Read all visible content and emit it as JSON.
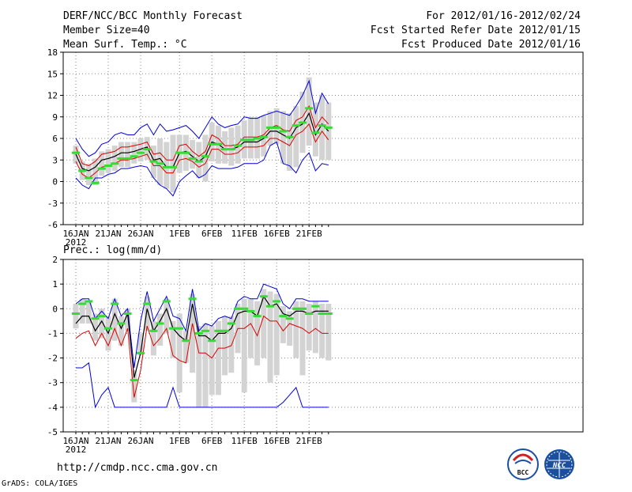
{
  "header": {
    "line1_left": "DERF/NCC/BCC Monthly Forecast",
    "line2_left": "Member Size=40",
    "line3_left": "Mean Surf. Temp.: °C",
    "line1_right": "For 2012/01/16-2012/02/24",
    "line2_right": "Fcst Started Refer Date 2012/01/15",
    "line3_right": "Fcst Produced Date 2012/01/16"
  },
  "footer": {
    "url": "http://cmdp.ncc.cma.gov.cn",
    "grads": "GrADS: COLA/IGES",
    "logo1_text": "BCC",
    "logo2_text": "NCC"
  },
  "colors": {
    "spread": "#d3d3d3",
    "envelope": "#0000dd",
    "inner": "#dd0000",
    "mean": "#000000",
    "median": "#33dd33",
    "grid": "#888888"
  },
  "chart_data": [
    {
      "type": "line",
      "title": "Mean Surf. Temp.: °C",
      "x_days": 40,
      "x_tick_labels": [
        {
          "day": 0,
          "label": "16JAN"
        },
        {
          "day": 5,
          "label": "21JAN"
        },
        {
          "day": 10,
          "label": "26JAN"
        },
        {
          "day": 16,
          "label": "1FEB"
        },
        {
          "day": 21,
          "label": "6FEB"
        },
        {
          "day": 26,
          "label": "11FEB"
        },
        {
          "day": 31,
          "label": "16FEB"
        },
        {
          "day": 36,
          "label": "21FEB"
        }
      ],
      "year_label": "2012",
      "ylim": [
        -6,
        18
      ],
      "yticks": [
        -6,
        -3,
        0,
        3,
        6,
        9,
        12,
        15,
        18
      ],
      "series": [
        {
          "name": "max",
          "values": [
            6,
            4.5,
            3.5,
            4,
            5.2,
            5.5,
            6.5,
            6.8,
            6.5,
            6.5,
            7.5,
            8,
            6.5,
            8,
            7,
            7.2,
            7.5,
            7.8,
            7,
            6,
            7.5,
            9,
            8,
            7.5,
            7.8,
            8,
            9,
            8.8,
            8.8,
            9.2,
            9.5,
            9.8,
            9.5,
            9.2,
            10.5,
            12,
            14,
            9.5,
            12.3,
            10.8
          ]
        },
        {
          "name": "upper",
          "values": [
            4.8,
            2.5,
            2.2,
            2.8,
            3.8,
            4,
            4.2,
            4.8,
            4.8,
            5,
            5.2,
            5.5,
            3.8,
            4,
            3,
            3,
            5,
            5.2,
            4.2,
            3.5,
            4.2,
            6.5,
            6,
            5,
            5,
            5.2,
            6.2,
            6.2,
            6.2,
            6.5,
            7.5,
            7.8,
            7.2,
            7,
            8.5,
            9,
            10.5,
            7.5,
            9,
            8
          ]
        },
        {
          "name": "mean",
          "values": [
            3.8,
            1.8,
            1.5,
            2,
            3,
            3.2,
            3.5,
            4,
            4,
            4.2,
            4.5,
            4.8,
            3,
            3.2,
            2,
            2,
            4,
            4.2,
            3.5,
            2.8,
            3.5,
            5.5,
            5.2,
            4.5,
            4.5,
            4.8,
            5.5,
            5.5,
            5.5,
            6,
            7,
            7,
            6.5,
            6,
            7.5,
            8,
            9.5,
            6.5,
            8,
            7
          ]
        },
        {
          "name": "lower",
          "values": [
            2.8,
            1,
            0.5,
            1.2,
            2,
            2.2,
            2.5,
            3,
            3,
            3.2,
            3.5,
            3.8,
            2.2,
            2.2,
            1.2,
            1.2,
            3,
            3.2,
            2.8,
            2,
            2.5,
            4.5,
            4.5,
            3.8,
            3.8,
            4,
            4.8,
            4.8,
            4.8,
            5,
            6,
            6,
            5.5,
            5,
            6.5,
            7,
            8,
            5.5,
            7,
            5.8
          ]
        },
        {
          "name": "min",
          "values": [
            0.5,
            -0.5,
            -1,
            0.5,
            0.5,
            1,
            1.2,
            1.8,
            1.8,
            2,
            2.2,
            2,
            0.5,
            -0.5,
            -1,
            -2,
            0,
            0.8,
            1.5,
            0.5,
            1,
            2.2,
            1.8,
            1.8,
            1.8,
            2,
            2.5,
            2.5,
            2.5,
            3,
            5,
            5.5,
            2.5,
            2.2,
            1.2,
            3,
            4,
            1.5,
            2.5,
            2.3
          ]
        },
        {
          "name": "median",
          "values": [
            4,
            1.5,
            0.5,
            -0.2,
            1.8,
            2.2,
            2.5,
            3.2,
            3.2,
            3.5,
            4,
            4.5,
            2.8,
            2.5,
            2,
            2,
            4,
            4,
            3.2,
            2.8,
            3.5,
            5.2,
            5.2,
            4.5,
            4.5,
            5,
            5.8,
            5.8,
            6,
            6.2,
            7.5,
            7.5,
            7,
            6.2,
            7.8,
            8.2,
            10.2,
            6.8,
            7.8,
            7.5
          ]
        },
        {
          "name": "spread_high",
          "values": [
            5,
            2.8,
            2.5,
            3.2,
            4.2,
            4.5,
            5,
            5.5,
            5.5,
            5.5,
            6,
            6.2,
            5,
            6,
            5.5,
            6.5,
            6.5,
            6.5,
            5.8,
            5.5,
            6.5,
            8.2,
            7.8,
            7,
            7.5,
            7.8,
            8.5,
            9,
            9,
            9.2,
            9.8,
            10.2,
            9.8,
            9.5,
            10.5,
            12.5,
            14.5,
            11,
            12,
            11
          ]
        },
        {
          "name": "spread_low",
          "values": [
            2.5,
            0.2,
            -0.5,
            -0.5,
            0.8,
            1.2,
            1.5,
            2,
            2,
            2.5,
            2.8,
            3,
            0.5,
            -0.5,
            -1,
            -1.5,
            1.2,
            1.5,
            1.8,
            0.5,
            0,
            2.8,
            2.5,
            2.5,
            2.2,
            2.5,
            3.2,
            3.2,
            3.2,
            3.5,
            5,
            5.2,
            2.5,
            1.5,
            2,
            4,
            5,
            3.5,
            3,
            3
          ]
        }
      ]
    },
    {
      "type": "line",
      "title": "Prec.: log(mm/d)",
      "x_days": 40,
      "x_tick_labels": [
        {
          "day": 0,
          "label": "16JAN"
        },
        {
          "day": 5,
          "label": "21JAN"
        },
        {
          "day": 10,
          "label": "26JAN"
        },
        {
          "day": 16,
          "label": "1FEB"
        },
        {
          "day": 21,
          "label": "6FEB"
        },
        {
          "day": 26,
          "label": "11FEB"
        },
        {
          "day": 31,
          "label": "16FEB"
        },
        {
          "day": 36,
          "label": "21FEB"
        }
      ],
      "year_label": "2012",
      "ylim": [
        -5,
        2
      ],
      "yticks": [
        -5,
        -4,
        -3,
        -2,
        -1,
        0,
        1,
        2
      ],
      "series": [
        {
          "name": "max",
          "values": [
            0.2,
            0.4,
            0.4,
            -0.4,
            -0.1,
            -0.4,
            0.4,
            -0.3,
            0,
            -2.4,
            -0.5,
            0.7,
            -0.5,
            0,
            0.5,
            -0.3,
            -0.4,
            -0.9,
            0.8,
            -0.9,
            -0.6,
            -0.7,
            -0.4,
            -0.3,
            -0.4,
            0.3,
            0.5,
            0.4,
            0.4,
            1,
            0.9,
            0.8,
            0.2,
            0,
            0.4,
            0.4,
            0.3,
            0.3,
            0.3,
            0.3
          ]
        },
        {
          "name": "mean",
          "values": [
            -0.6,
            -0.3,
            -0.3,
            -0.9,
            -0.5,
            -1,
            -0.2,
            -0.8,
            -0.2,
            -2.8,
            -1.8,
            0,
            -0.9,
            -0.5,
            0,
            -0.8,
            -1.1,
            -1.3,
            0.2,
            -1.1,
            -1.1,
            -1.3,
            -1,
            -1,
            -0.8,
            -0.2,
            -0.1,
            -0.1,
            -0.3,
            0.5,
            0.1,
            0.2,
            -0.2,
            -0.3,
            -0.1,
            -0.1,
            -0.2,
            -0.1,
            -0.1,
            -0.1
          ]
        },
        {
          "name": "inner_low",
          "values": [
            -1.2,
            -1,
            -0.9,
            -1.5,
            -1,
            -1.5,
            -0.8,
            -1.5,
            -0.8,
            -3.6,
            -2.5,
            -0.7,
            -1.5,
            -1.2,
            -0.8,
            -1.9,
            -2.1,
            -2.2,
            -0.6,
            -1.8,
            -1.8,
            -2,
            -1.6,
            -1.6,
            -1.5,
            -0.8,
            -0.8,
            -0.6,
            -1.1,
            -0.3,
            -0.5,
            -0.5,
            -0.9,
            -0.6,
            -0.7,
            -0.8,
            -1,
            -0.8,
            -1,
            -1
          ]
        },
        {
          "name": "min",
          "values": [
            -2.4,
            -2.4,
            -2.2,
            -4,
            -3.5,
            -3.2,
            -4,
            -4,
            -4,
            -4,
            -4,
            -4,
            -4,
            -4,
            -4,
            -3.2,
            -4,
            -4,
            -4,
            -4,
            -4,
            -4,
            -4,
            -4,
            -4,
            -4,
            -4,
            -4,
            -4,
            -4,
            -4,
            -4,
            -3.8,
            -3.5,
            -3.2,
            -4,
            -4,
            -4,
            -4,
            -4
          ]
        },
        {
          "name": "median",
          "values": [
            -0.2,
            0.2,
            0.3,
            -0.4,
            -0.3,
            -0.8,
            0.2,
            -0.6,
            -0.2,
            -2.9,
            -1.8,
            0.2,
            -0.9,
            -0.6,
            0.3,
            -0.8,
            -0.8,
            -1.3,
            0.4,
            -1,
            -0.9,
            -1.3,
            -0.9,
            -0.9,
            -0.6,
            0,
            0,
            -0.1,
            -0.3,
            0.5,
            0.1,
            0.3,
            -0.3,
            -0.4,
            0,
            0,
            -0.2,
            0.1,
            -0.2,
            -0.2
          ]
        },
        {
          "name": "spread_high",
          "values": [
            0.2,
            0.4,
            0.3,
            -0.2,
            0,
            -0.3,
            0.4,
            -0.3,
            0,
            -2.5,
            -1,
            0.5,
            -0.5,
            -0.2,
            0.4,
            -0.5,
            -0.2,
            -0.9,
            0.6,
            -0.7,
            -0.6,
            -0.7,
            -0.5,
            -0.3,
            -0.3,
            0.2,
            0.4,
            0.4,
            0.3,
            0.8,
            0.7,
            0.6,
            0.1,
            -0.1,
            0.3,
            0.3,
            0.2,
            0.3,
            0.2,
            0.2
          ]
        },
        {
          "name": "spread_low",
          "values": [
            -0.8,
            -0.6,
            -0.6,
            -1.3,
            -1.2,
            -1.7,
            -1.3,
            -1.5,
            -0.9,
            -3.8,
            -1.9,
            -0.9,
            -1.9,
            -1.5,
            -1,
            -2,
            -3.4,
            -2.2,
            -2.6,
            -4,
            -4,
            -3.5,
            -3.5,
            -2.7,
            -2.6,
            -1.8,
            -3.4,
            -2,
            -2.3,
            -2,
            -3,
            -2.7,
            -1.4,
            -1.5,
            -2,
            -2.7,
            -1.7,
            -1.8,
            -2,
            -2.1
          ]
        }
      ]
    }
  ]
}
